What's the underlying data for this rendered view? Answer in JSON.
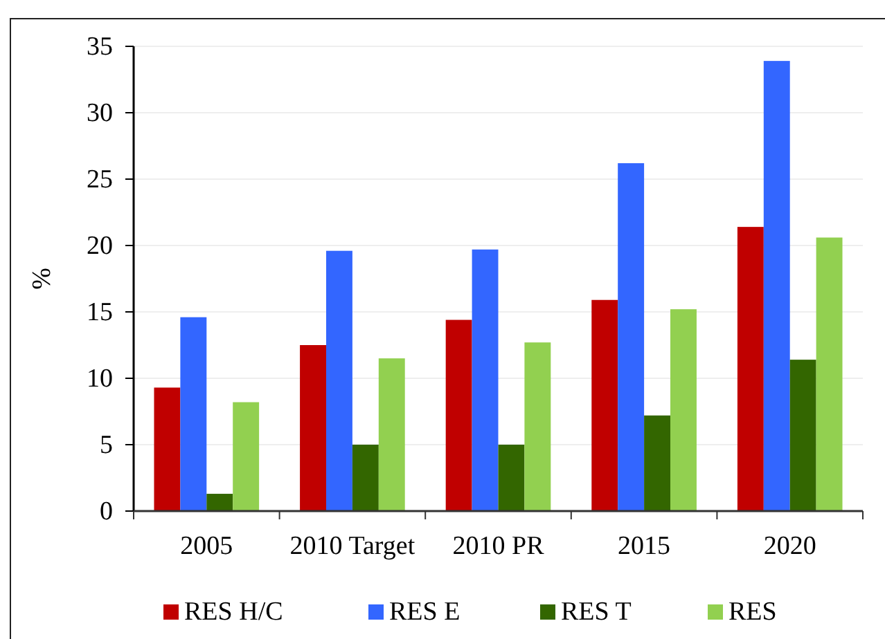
{
  "chart_data": {
    "type": "bar",
    "ylabel": "%",
    "categories": [
      "2005",
      "2010 Target",
      "2010 PR",
      "2015",
      "2020"
    ],
    "series": [
      {
        "name": "RES H/C",
        "color": "#c00000",
        "values": [
          9.3,
          12.5,
          14.4,
          15.9,
          21.4
        ]
      },
      {
        "name": "RES E",
        "color": "#3366ff",
        "values": [
          14.6,
          19.6,
          19.7,
          26.2,
          33.9
        ]
      },
      {
        "name": "RES T",
        "color": "#336600",
        "values": [
          1.3,
          5.0,
          5.0,
          7.2,
          11.4
        ]
      },
      {
        "name": "RES",
        "color": "#92d050",
        "values": [
          8.2,
          11.5,
          12.7,
          15.2,
          20.6
        ]
      }
    ],
    "ylim": [
      0,
      35
    ],
    "yticks": [
      0,
      5,
      10,
      15,
      20,
      25,
      30,
      35
    ],
    "grid": "y",
    "legend": "bottom"
  }
}
